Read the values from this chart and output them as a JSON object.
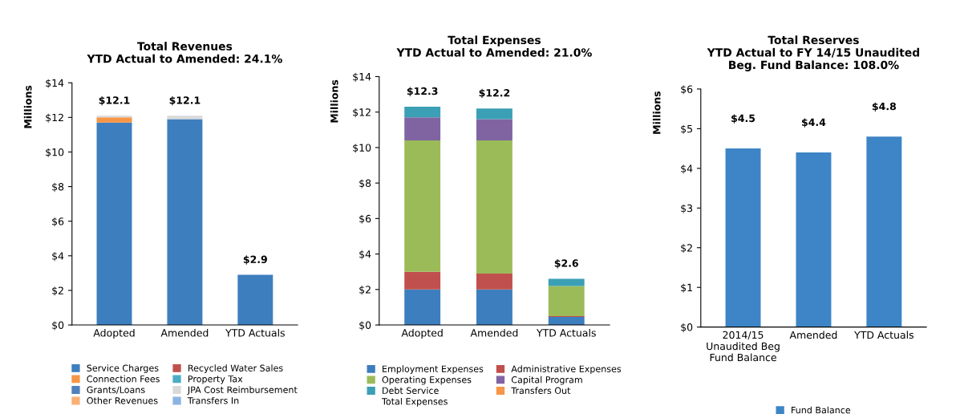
{
  "chart_data": [
    {
      "type": "bar",
      "title": "Total Revenues\nYTD Actual to Amended: 24.1%",
      "ylabel": "Millions",
      "stacked": true,
      "categories": [
        "Adopted",
        "Amended",
        "YTD Actuals"
      ],
      "series": [
        {
          "name": "Service Charges",
          "color": "#3d7ebf",
          "values": [
            11.7,
            11.9,
            2.9
          ]
        },
        {
          "name": "Recycled Water Sales",
          "color": "#c0504d",
          "values": [
            0,
            0,
            0
          ]
        },
        {
          "name": "Connection Fees",
          "color": "#f79646",
          "values": [
            0.3,
            0,
            0
          ]
        },
        {
          "name": "Property Tax",
          "color": "#4bacc6",
          "values": [
            0,
            0,
            0
          ]
        },
        {
          "name": "Grants/Loans",
          "color": "#4f81bd",
          "values": [
            0,
            0,
            0
          ]
        },
        {
          "name": "JPA Cost Reimbursement",
          "color": "#d9d9d9",
          "values": [
            0.1,
            0.2,
            0
          ]
        },
        {
          "name": "Other Revenues",
          "color": "#f9b074",
          "values": [
            0,
            0,
            0
          ]
        },
        {
          "name": "Transfers In",
          "color": "#8db3e2",
          "values": [
            0,
            0,
            0
          ]
        }
      ],
      "totals": [
        "$12.1",
        "$12.1",
        "$2.9"
      ],
      "ylim": [
        0,
        14
      ],
      "yticks": [
        {
          "value": 0,
          "label": "$0"
        },
        {
          "value": 2,
          "label": "$2"
        },
        {
          "value": 4,
          "label": "$4"
        },
        {
          "value": 6,
          "label": "$6"
        },
        {
          "value": 8,
          "label": "$8"
        },
        {
          "value": 10,
          "label": "$10"
        },
        {
          "value": 12,
          "label": "$12"
        },
        {
          "value": 14,
          "label": "$14"
        }
      ],
      "legend": "bottom",
      "grid": false
    },
    {
      "type": "bar",
      "title": "Total Expenses\nYTD Actual to Amended: 21.0%",
      "ylabel": "Millions",
      "stacked": true,
      "categories": [
        "Adopted",
        "Amended",
        "YTD Actuals"
      ],
      "series": [
        {
          "name": "Employment Expenses",
          "color": "#3d7ebf",
          "values": [
            2.0,
            2.0,
            0.45
          ]
        },
        {
          "name": "Administrative Expenses",
          "color": "#c0504d",
          "values": [
            1.0,
            0.9,
            0.05
          ]
        },
        {
          "name": "Operating Expenses",
          "color": "#9bbb59",
          "values": [
            7.4,
            7.5,
            1.7
          ]
        },
        {
          "name": "Capital Program",
          "color": "#8064a2",
          "values": [
            1.3,
            1.2,
            0
          ]
        },
        {
          "name": "Debt Service",
          "color": "#3b9fb5",
          "values": [
            0.6,
            0.6,
            0.4
          ]
        },
        {
          "name": "Transfers Out",
          "color": "#f79646",
          "values": [
            0,
            0,
            0
          ]
        }
      ],
      "totals": [
        "$12.3",
        "$12.2",
        "$2.6"
      ],
      "annotations": [
        "Total Expenses"
      ],
      "ylim": [
        0,
        14
      ],
      "yticks": [
        {
          "value": 0,
          "label": "$0"
        },
        {
          "value": 2,
          "label": "$2"
        },
        {
          "value": 4,
          "label": "$4"
        },
        {
          "value": 6,
          "label": "$6"
        },
        {
          "value": 8,
          "label": "$8"
        },
        {
          "value": 10,
          "label": "$10"
        },
        {
          "value": 12,
          "label": "$12"
        },
        {
          "value": 14,
          "label": "$14"
        }
      ],
      "legend": "bottom",
      "grid": false
    },
    {
      "type": "bar",
      "title": "Total Reserves\nYTD Actual to FY 14/15 Unaudited\nBeg. Fund Balance: 108.0%",
      "ylabel": "Millions",
      "categories": [
        "2014/15\nUnaudited Beg\nFund Balance",
        "Amended",
        "YTD Actuals"
      ],
      "series": [
        {
          "name": "Fund Balance",
          "color": "#3d85c6",
          "values": [
            4.5,
            4.4,
            4.8
          ]
        }
      ],
      "value_labels": [
        "$4.5",
        "$4.4",
        "$4.8"
      ],
      "ylim": [
        0,
        6
      ],
      "yticks": [
        {
          "value": 0,
          "label": "$0"
        },
        {
          "value": 1,
          "label": "$1"
        },
        {
          "value": 2,
          "label": "$2"
        },
        {
          "value": 3,
          "label": "$3"
        },
        {
          "value": 4,
          "label": "$4"
        },
        {
          "value": 5,
          "label": "$5"
        },
        {
          "value": 6,
          "label": "$6"
        }
      ],
      "legend": "bottom",
      "grid": false
    }
  ]
}
